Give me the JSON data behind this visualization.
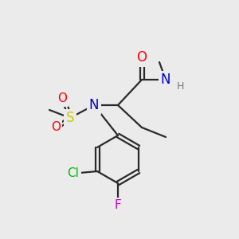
{
  "background_color": "#ebebeb",
  "bond_color": "#2a2a2a",
  "atom_colors": {
    "O": "#ff0000",
    "N": "#0000cc",
    "S": "#cccc00",
    "Cl": "#00bb00",
    "F": "#cc00cc",
    "H": "#777777",
    "C": "#2a2a2a"
  },
  "bond_lw": 1.6,
  "font_size_atoms": 11,
  "font_size_small": 9,
  "font_size_methyl": 9
}
